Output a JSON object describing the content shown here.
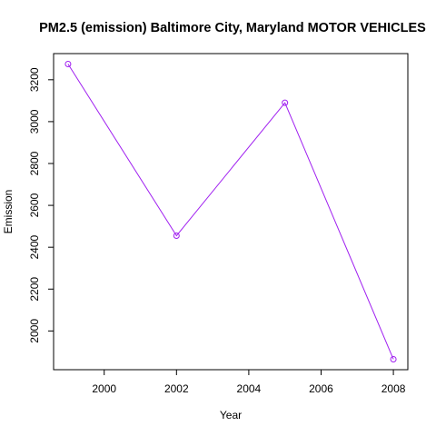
{
  "chart_data": {
    "type": "line",
    "title": "PM2.5 (emission) Baltimore City, Maryland MOTOR VEHICLES",
    "xlabel": "Year",
    "ylabel": "Emission",
    "x": [
      1999,
      2002,
      2005,
      2008
    ],
    "y": [
      3275,
      2455,
      3090,
      1865
    ],
    "xlim": [
      1998.6,
      2008.4
    ],
    "ylim": [
      1815,
      3325
    ],
    "xticks": [
      2000,
      2002,
      2004,
      2006,
      2008
    ],
    "yticks": [
      2000,
      2200,
      2400,
      2600,
      2800,
      3000,
      3200
    ],
    "series_color": "#a020f0",
    "marker": "open-circle",
    "grid": false,
    "legend": "none"
  }
}
